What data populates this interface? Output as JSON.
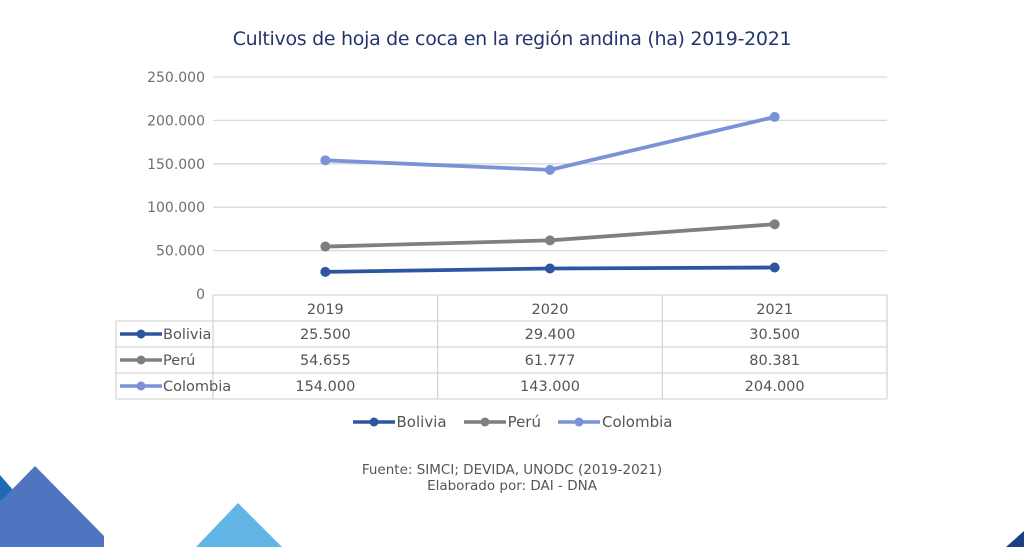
{
  "chart_data": {
    "type": "line",
    "title": "Cultivos de hoja de coca en la región andina (ha) 2019-2021",
    "xlabel": "",
    "ylabel": "",
    "categories": [
      "2019",
      "2020",
      "2021"
    ],
    "ylim": [
      0,
      250000
    ],
    "yticks": [
      0,
      50000,
      100000,
      150000,
      200000,
      250000
    ],
    "ytick_labels": [
      "0",
      "50.000",
      "100.000",
      "150.000",
      "200.000",
      "250.000"
    ],
    "grid": true,
    "legend_position": "bottom",
    "data_table": true,
    "series": [
      {
        "name": "Bolivia",
        "color": "#2e55a0",
        "values": [
          25500,
          29400,
          30500
        ],
        "labels": [
          "25.500",
          "29.400",
          "30.500"
        ]
      },
      {
        "name": "Perú",
        "color": "#7f7f7f",
        "values": [
          54655,
          61777,
          80381
        ],
        "labels": [
          "54.655",
          "61.777",
          "80.381"
        ]
      },
      {
        "name": "Colombia",
        "color": "#7b93d6",
        "values": [
          154000,
          143000,
          204000
        ],
        "labels": [
          "154.000",
          "143.000",
          "204.000"
        ]
      }
    ]
  },
  "source": {
    "line1": "Fuente: SIMCI; DEVIDA, UNODC (2019-2021)",
    "line2": "Elaborado por: DAI - DNA"
  },
  "decor_colors": {
    "dark_blue": "#1d4e9a",
    "mid_blue": "#4f74c0",
    "light_blue": "#5eb3e6",
    "navy": "#1b3f87"
  }
}
